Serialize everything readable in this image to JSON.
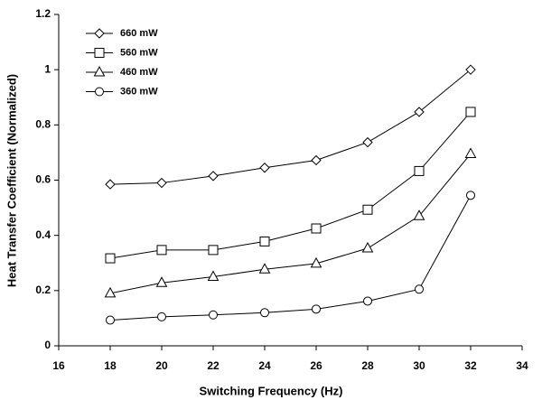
{
  "chart_data": {
    "type": "line",
    "x_label": "Switching Frequency (Hz)",
    "y_label": "Heat Transfer Coefficient (Normalized)",
    "x": [
      18,
      20,
      22,
      24,
      26,
      28,
      30,
      32
    ],
    "series": [
      {
        "name": "660 mW",
        "color": "#000000",
        "marker": "diamond",
        "values": [
          0.585,
          0.59,
          0.615,
          0.645,
          0.672,
          0.737,
          0.847,
          1.0
        ]
      },
      {
        "name": "560 mW",
        "color": "#000000",
        "marker": "square",
        "values": [
          0.317,
          0.347,
          0.347,
          0.378,
          0.425,
          0.493,
          0.633,
          0.847
        ]
      },
      {
        "name": "460 mW",
        "color": "#000000",
        "marker": "triangle",
        "values": [
          0.19,
          0.228,
          0.25,
          0.277,
          0.298,
          0.353,
          0.47,
          0.695
        ]
      },
      {
        "name": "360 mW",
        "color": "#000000",
        "marker": "circle",
        "values": [
          0.093,
          0.105,
          0.112,
          0.12,
          0.133,
          0.162,
          0.205,
          0.545
        ]
      }
    ],
    "xlim": [
      16,
      34
    ],
    "xticks": [
      16,
      18,
      20,
      22,
      24,
      26,
      28,
      30,
      32,
      34
    ],
    "ylim": [
      0,
      1.2
    ],
    "yticks": [
      0,
      0.2,
      0.4,
      0.6,
      0.8,
      1,
      1.2
    ],
    "legend": "upper-left"
  }
}
